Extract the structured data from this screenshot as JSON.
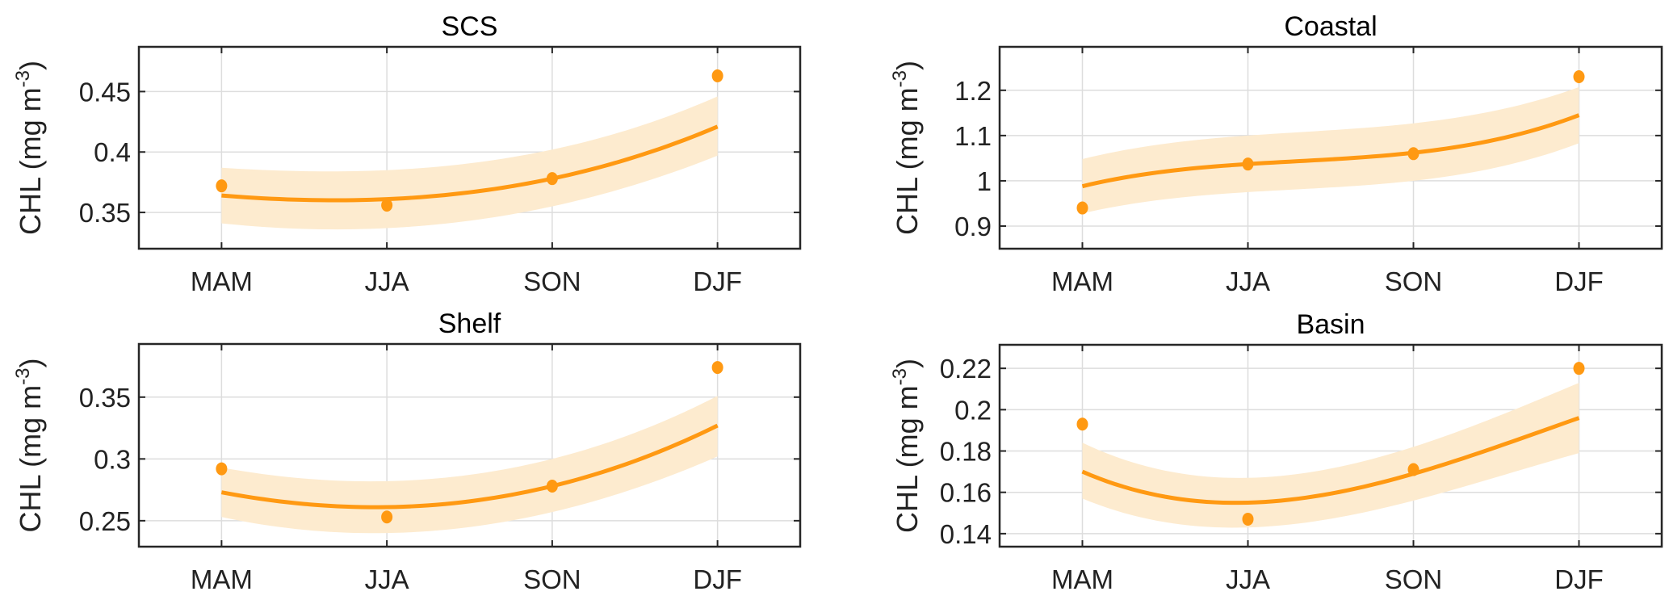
{
  "colors": {
    "fit_line": "#FF9912",
    "points": "#FF9912",
    "band": "#FDEBCF",
    "grid": "#DDDDDD",
    "axes": "#262626"
  },
  "chart_data": [
    {
      "type": "line",
      "title": "SCS",
      "ylabel": "CHL (mg m",
      "ylabel_sup": "-3",
      "ylabel_close": ")",
      "categories": [
        "MAM",
        "JJA",
        "SON",
        "DJF"
      ],
      "yticks": [
        0.35,
        0.4,
        0.45
      ],
      "ytick_labels": [
        "0.35",
        "0.4",
        "0.45"
      ],
      "ylim": [
        0.32,
        0.487
      ],
      "grid": true,
      "observed": [
        0.372,
        0.356,
        0.378,
        0.463
      ],
      "fit": [
        0.364,
        0.361,
        0.378,
        0.421
      ],
      "fit_lower": [
        0.341,
        0.337,
        0.355,
        0.397
      ],
      "fit_upper": [
        0.387,
        0.385,
        0.402,
        0.446
      ]
    },
    {
      "type": "line",
      "title": "Coastal",
      "ylabel": "CHL (mg m",
      "ylabel_sup": "-3",
      "ylabel_close": ")",
      "categories": [
        "MAM",
        "JJA",
        "SON",
        "DJF"
      ],
      "yticks": [
        0.9,
        1.0,
        1.1,
        1.2
      ],
      "ytick_labels": [
        "0.9",
        "1",
        "1.1",
        "1.2"
      ],
      "ylim": [
        0.85,
        1.296
      ],
      "grid": true,
      "observed": [
        0.94,
        1.037,
        1.06,
        1.23
      ],
      "fit": [
        0.988,
        1.037,
        1.062,
        1.145
      ],
      "fit_lower": [
        0.928,
        0.975,
        1.0,
        1.083
      ],
      "fit_upper": [
        1.048,
        1.1,
        1.127,
        1.207
      ]
    },
    {
      "type": "line",
      "title": "Shelf",
      "ylabel": "CHL (mg m",
      "ylabel_sup": "-3",
      "ylabel_close": ")",
      "categories": [
        "MAM",
        "JJA",
        "SON",
        "DJF"
      ],
      "yticks": [
        0.25,
        0.3,
        0.35
      ],
      "ytick_labels": [
        "0.25",
        "0.3",
        "0.35"
      ],
      "ylim": [
        0.229,
        0.393
      ],
      "grid": true,
      "observed": [
        0.292,
        0.253,
        0.278,
        0.374
      ],
      "fit": [
        0.273,
        0.261,
        0.278,
        0.327
      ],
      "fit_lower": [
        0.253,
        0.24,
        0.257,
        0.302
      ],
      "fit_upper": [
        0.293,
        0.282,
        0.3,
        0.351
      ]
    },
    {
      "type": "line",
      "title": "Basin",
      "ylabel": "CHL (mg m",
      "ylabel_sup": "-3",
      "ylabel_close": ")",
      "categories": [
        "MAM",
        "JJA",
        "SON",
        "DJF"
      ],
      "yticks": [
        0.14,
        0.16,
        0.18,
        0.2,
        0.22
      ],
      "ytick_labels": [
        "0.14",
        "0.16",
        "0.18",
        "0.2",
        "0.22"
      ],
      "ylim": [
        0.1337,
        0.2314
      ],
      "grid": true,
      "observed": [
        0.193,
        0.147,
        0.171,
        0.22
      ],
      "fit": [
        0.17,
        0.155,
        0.169,
        0.196
      ],
      "fit_lower": [
        0.157,
        0.143,
        0.156,
        0.179
      ],
      "fit_upper": [
        0.184,
        0.167,
        0.182,
        0.213
      ]
    }
  ]
}
